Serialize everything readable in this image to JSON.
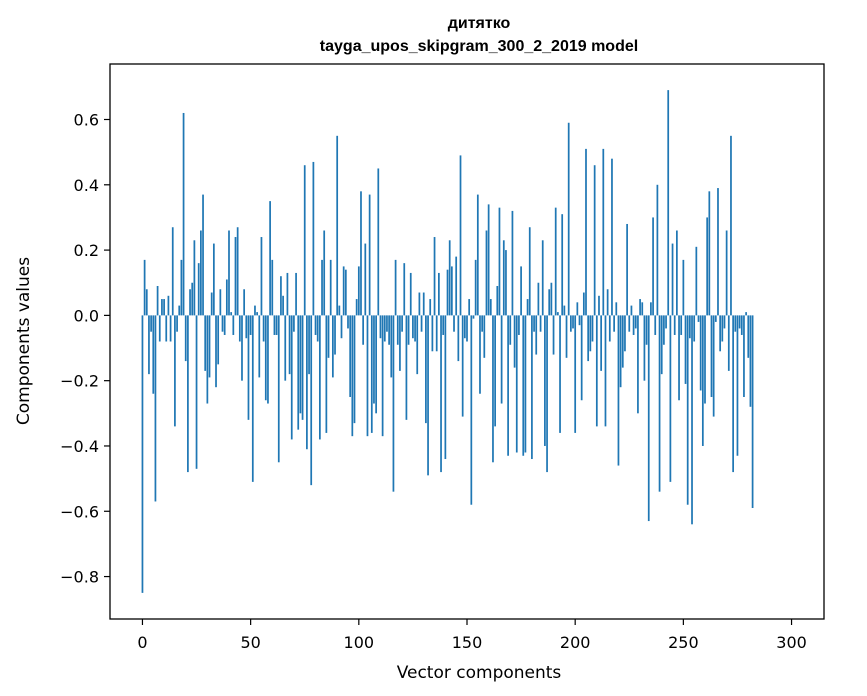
{
  "chart_data": {
    "type": "bar",
    "title_line1": "дитятко",
    "title_line2": "tayga_upos_skipgram_300_2_2019 model",
    "xlabel": "Vector components",
    "ylabel": "Components values",
    "xlim": [
      -15,
      315
    ],
    "ylim": [
      -0.93,
      0.77
    ],
    "xticks": [
      0,
      50,
      100,
      150,
      200,
      250,
      300
    ],
    "xtick_labels": [
      "0",
      "50",
      "100",
      "150",
      "200",
      "250",
      "300"
    ],
    "yticks": [
      -0.8,
      -0.6,
      -0.4,
      -0.2,
      0.0,
      0.2,
      0.4,
      0.6
    ],
    "ytick_labels": [
      "−0.8",
      "−0.6",
      "−0.4",
      "−0.2",
      "0.0",
      "0.2",
      "0.4",
      "0.6"
    ],
    "grid": false,
    "bar_color": "#1f77b4",
    "categories_from": 0,
    "values": [
      -0.85,
      0.17,
      0.08,
      -0.18,
      -0.05,
      -0.24,
      -0.57,
      0.09,
      -0.08,
      0.05,
      0.05,
      -0.08,
      0.06,
      -0.08,
      0.27,
      -0.34,
      -0.05,
      0.03,
      0.17,
      0.62,
      -0.14,
      -0.48,
      0.08,
      0.1,
      0.23,
      -0.47,
      0.16,
      0.26,
      0.37,
      -0.17,
      -0.27,
      -0.19,
      0.07,
      0.22,
      -0.22,
      -0.15,
      0.08,
      -0.05,
      -0.06,
      0.11,
      0.26,
      0.01,
      -0.06,
      0.24,
      0.27,
      -0.08,
      -0.2,
      0.08,
      -0.07,
      -0.32,
      -0.06,
      -0.51,
      0.03,
      0.01,
      -0.19,
      0.24,
      -0.08,
      -0.26,
      -0.27,
      0.35,
      0.17,
      -0.06,
      -0.06,
      -0.45,
      0.12,
      0.06,
      -0.2,
      0.13,
      -0.18,
      -0.38,
      -0.05,
      0.13,
      -0.35,
      -0.3,
      -0.32,
      0.46,
      -0.41,
      -0.18,
      -0.52,
      0.47,
      -0.06,
      -0.08,
      -0.38,
      0.17,
      0.26,
      -0.36,
      -0.13,
      0.17,
      -0.19,
      -0.12,
      0.55,
      0.03,
      -0.07,
      0.15,
      0.14,
      -0.04,
      -0.25,
      -0.37,
      -0.33,
      0.05,
      0.15,
      0.38,
      -0.09,
      0.22,
      -0.37,
      0.37,
      -0.36,
      -0.27,
      -0.3,
      0.45,
      -0.07,
      -0.37,
      -0.08,
      -0.05,
      -0.09,
      -0.19,
      -0.54,
      0.17,
      -0.09,
      -0.17,
      -0.05,
      0.16,
      -0.32,
      -0.09,
      0.13,
      -0.07,
      -0.08,
      -0.18,
      0.07,
      -0.05,
      0.07,
      -0.33,
      -0.49,
      0.05,
      -0.11,
      0.24,
      -0.11,
      0.13,
      -0.48,
      -0.06,
      -0.44,
      0.14,
      0.23,
      0.15,
      -0.05,
      0.18,
      -0.14,
      0.49,
      -0.31,
      -0.07,
      -0.08,
      0.05,
      -0.58,
      -0.01,
      0.17,
      0.37,
      -0.24,
      -0.05,
      -0.13,
      0.26,
      0.34,
      0.05,
      -0.45,
      -0.34,
      0.09,
      0.33,
      -0.27,
      0.23,
      0.2,
      -0.43,
      -0.09,
      0.32,
      -0.16,
      -0.42,
      -0.06,
      0.15,
      -0.43,
      -0.42,
      0.05,
      0.27,
      -0.44,
      -0.05,
      -0.12,
      0.1,
      -0.05,
      0.23,
      -0.4,
      -0.48,
      0.08,
      0.1,
      -0.12,
      0.33,
      0.01,
      -0.36,
      0.31,
      0.03,
      -0.13,
      0.59,
      -0.05,
      -0.04,
      -0.36,
      0.04,
      -0.03,
      -0.26,
      0.07,
      0.51,
      -0.14,
      -0.11,
      -0.08,
      0.46,
      -0.34,
      0.06,
      -0.17,
      0.51,
      -0.34,
      0.08,
      -0.08,
      0.48,
      -0.05,
      0.04,
      -0.46,
      -0.22,
      -0.16,
      -0.11,
      0.28,
      -0.05,
      0.03,
      -0.06,
      -0.04,
      -0.3,
      0.05,
      0.04,
      -0.2,
      -0.09,
      -0.63,
      0.04,
      0.3,
      -0.06,
      0.4,
      -0.54,
      -0.18,
      -0.09,
      -0.04,
      0.69,
      -0.51,
      0.22,
      -0.06,
      0.26,
      -0.26,
      -0.06,
      0.17,
      -0.21,
      -0.58,
      -0.07,
      -0.64,
      -0.08,
      0.21,
      -0.02,
      -0.23,
      -0.4,
      -0.27,
      0.3,
      0.38,
      -0.25,
      -0.31,
      -0.02,
      0.39,
      -0.11,
      -0.08,
      -0.04,
      0.26,
      -0.17,
      0.55,
      -0.48,
      -0.05,
      -0.43,
      -0.04,
      -0.06,
      -0.25,
      0.01,
      -0.13,
      -0.28,
      -0.59
    ]
  }
}
